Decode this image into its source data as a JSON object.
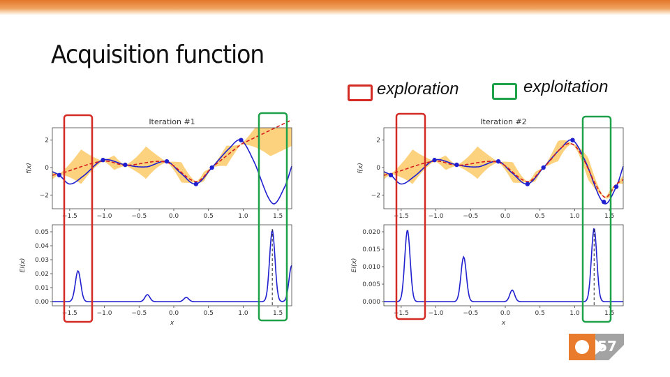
{
  "slide": {
    "title": "Acquisition function",
    "page_number": "57",
    "legend": [
      {
        "label": "exploration",
        "color": "#d42a24"
      },
      {
        "label": "exploitation",
        "color": "#1fa14a"
      }
    ],
    "colors": {
      "topbar": "#e2762a",
      "band": "#fdd27f",
      "true_fn": "#1f1fcf",
      "mean": "#d61e1e",
      "badge_orange": "#e97b2d",
      "badge_gray": "#a3a3a3"
    }
  },
  "chart_data": [
    {
      "type": "line",
      "title": "Iteration #1",
      "xlabel": "",
      "ylabel": "f(x)",
      "xlim": [
        -1.75,
        1.7
      ],
      "ylim": [
        -3.0,
        2.9
      ],
      "xticks": [
        "−1.5",
        "−1.0",
        "−0.5",
        "0.0",
        "0.5",
        "1.0",
        "1.5"
      ],
      "xtick_values": [
        -1.5,
        -1.0,
        -0.5,
        0.0,
        0.5,
        1.0,
        1.5
      ],
      "yticks": [
        "−2",
        "0",
        "2"
      ],
      "ytick_values": [
        -2,
        0,
        2
      ],
      "observations": {
        "x": [
          -1.65,
          -1.02,
          -0.7,
          -0.1,
          0.32,
          0.55,
          0.97
        ],
        "y": [
          -0.55,
          0.55,
          0.2,
          0.45,
          -1.2,
          0.0,
          2.0
        ]
      }
    },
    {
      "type": "line",
      "title": "",
      "xlabel": "x",
      "ylabel": "EI(x)",
      "xlim": [
        -1.75,
        1.7
      ],
      "ylim": [
        -0.003,
        0.055
      ],
      "xticks": [
        "−1.5",
        "−1.0",
        "−0.5",
        "0.0",
        "0.5",
        "1.0",
        "1.5"
      ],
      "xtick_values": [
        -1.5,
        -1.0,
        -0.5,
        0.0,
        0.5,
        1.0,
        1.5
      ],
      "yticks": [
        "0.00",
        "0.01",
        "0.02",
        "0.03",
        "0.04",
        "0.05"
      ],
      "ytick_values": [
        0,
        0.01,
        0.02,
        0.03,
        0.04,
        0.05
      ],
      "peaks": [
        {
          "x": -1.38,
          "y": 0.022
        },
        {
          "x": -0.38,
          "y": 0.005
        },
        {
          "x": 0.18,
          "y": 0.003
        },
        {
          "x": 1.42,
          "y": 0.051
        },
        {
          "x": 1.7,
          "y": 0.026
        }
      ],
      "argmax_x": 1.42
    },
    {
      "type": "line",
      "title": "Iteration #2",
      "xlabel": "",
      "ylabel": "f(x)",
      "xlim": [
        -1.75,
        1.7
      ],
      "ylim": [
        -3.0,
        2.9
      ],
      "xticks": [
        "−1.5",
        "−1.0",
        "−0.5",
        "0.0",
        "0.5",
        "1.0",
        "1.5"
      ],
      "xtick_values": [
        -1.5,
        -1.0,
        -0.5,
        0.0,
        0.5,
        1.0,
        1.5
      ],
      "yticks": [
        "−2",
        "0",
        "2"
      ],
      "ytick_values": [
        -2,
        0,
        2
      ],
      "observations": {
        "x": [
          -1.65,
          -1.02,
          -0.7,
          -0.1,
          0.32,
          0.55,
          0.97,
          1.42,
          1.6
        ],
        "y": [
          -0.55,
          0.55,
          0.2,
          0.45,
          -1.2,
          0.0,
          2.0,
          -2.5,
          -1.4
        ]
      }
    },
    {
      "type": "line",
      "title": "",
      "xlabel": "x",
      "ylabel": "EI(x)",
      "xlim": [
        -1.75,
        1.7
      ],
      "ylim": [
        -0.0012,
        0.022
      ],
      "xticks": [
        "−1.5",
        "−1.0",
        "−0.5",
        "0.0",
        "0.5",
        "1.0",
        "1.5"
      ],
      "xtick_values": [
        -1.5,
        -1.0,
        -0.5,
        0.0,
        0.5,
        1.0,
        1.5
      ],
      "yticks": [
        "0.000",
        "0.005",
        "0.010",
        "0.015",
        "0.020"
      ],
      "ytick_values": [
        0,
        0.005,
        0.01,
        0.015,
        0.02
      ],
      "peaks": [
        {
          "x": -1.41,
          "y": 0.0205
        },
        {
          "x": -0.6,
          "y": 0.0128
        },
        {
          "x": 0.1,
          "y": 0.0033
        },
        {
          "x": 1.28,
          "y": 0.021
        }
      ],
      "argmax_x": 1.28
    }
  ]
}
